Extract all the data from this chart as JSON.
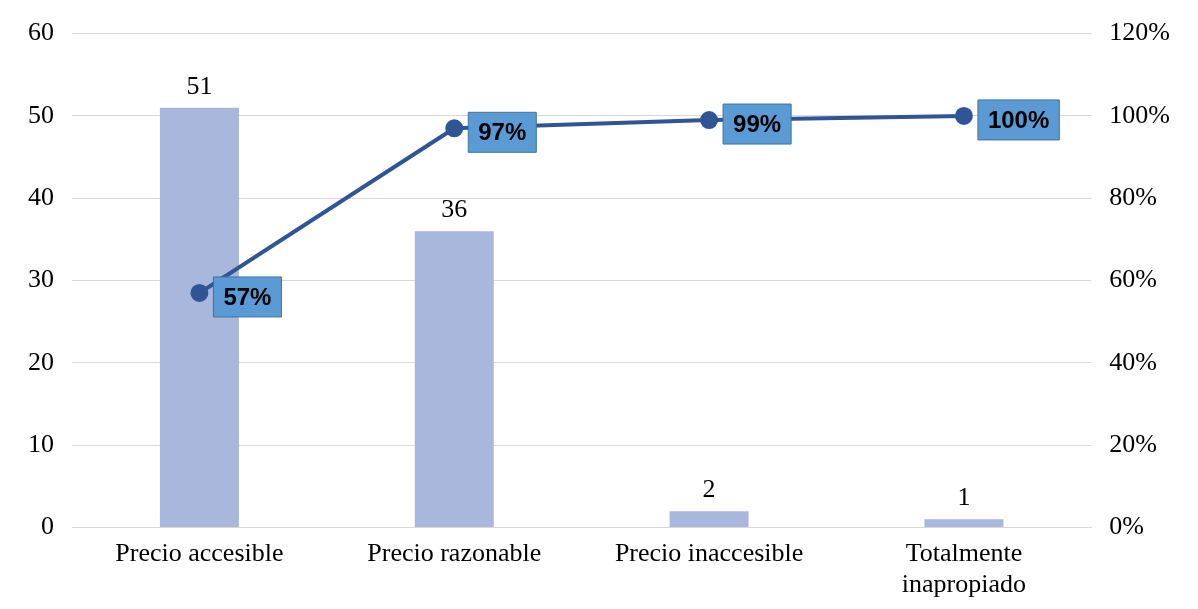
{
  "chart_data": {
    "type": "bar",
    "categories": [
      "Precio accesible",
      "Precio razonable",
      "Precio inaccesible",
      "Totalmente inapropiado"
    ],
    "series": [
      {
        "color": "#a9b7dc",
        "values": [
          51,
          36,
          2,
          1
        ],
        "value_labels": [
          "51",
          "36",
          "2",
          "1"
        ]
      },
      {
        "type": "line",
        "axis": "y2",
        "color": "#2f5597",
        "values": [
          57,
          97,
          99,
          100
        ],
        "value_labels": [
          "57%",
          "97%",
          "99%",
          "100%"
        ]
      }
    ],
    "ylim": [
      0,
      60
    ],
    "yticks": [
      0,
      10,
      20,
      30,
      40,
      50,
      60
    ],
    "y2lim": [
      0,
      120
    ],
    "y2ticks": [
      {
        "value": 0,
        "label": "0%"
      },
      {
        "value": 20,
        "label": "20%"
      },
      {
        "value": 40,
        "label": "40%"
      },
      {
        "value": 60,
        "label": "60%"
      },
      {
        "value": 80,
        "label": "80%"
      },
      {
        "value": 100,
        "label": "100%"
      },
      {
        "value": 120,
        "label": "120%"
      }
    ],
    "grid": "y",
    "legend": false,
    "marker": "circle",
    "line_style": "solid"
  }
}
